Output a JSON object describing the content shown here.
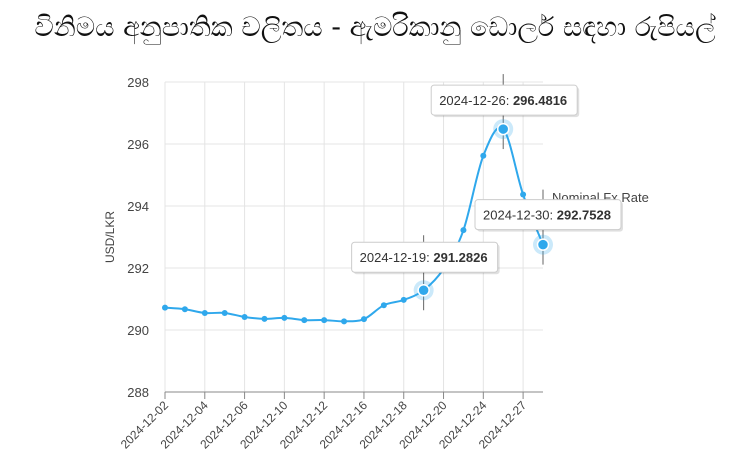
{
  "title": "විනිමය අනුපාතික චලිතය - ඇමරිකානු ඩොලර් සඳහා රුපියල්",
  "colors": {
    "line": "#2fa8ec",
    "grid": "#e4e4e4",
    "axis": "#888888"
  },
  "chart_data": {
    "type": "line",
    "ylabel": "USD/LKR",
    "xlabel": "",
    "ylim": [
      288,
      298
    ],
    "yticks": [
      288,
      290,
      292,
      294,
      296,
      298
    ],
    "grid": true,
    "legend_position": "right",
    "series": [
      {
        "name": "Nominal Fx Rate",
        "x": [
          "2024-12-02",
          "2024-12-03",
          "2024-12-04",
          "2024-12-05",
          "2024-12-06",
          "2024-12-09",
          "2024-12-10",
          "2024-12-11",
          "2024-12-12",
          "2024-12-13",
          "2024-12-16",
          "2024-12-17",
          "2024-12-18",
          "2024-12-19",
          "2024-12-20",
          "2024-12-23",
          "2024-12-24",
          "2024-12-26",
          "2024-12-27",
          "2024-12-30"
        ],
        "values": [
          290.72,
          290.67,
          290.55,
          290.55,
          290.42,
          290.36,
          290.39,
          290.32,
          290.32,
          290.28,
          290.35,
          290.8,
          290.97,
          291.2826,
          291.97,
          293.22,
          295.62,
          296.4816,
          294.37,
          292.7528
        ]
      }
    ],
    "x_tick_labels": [
      "2024-12-02",
      "2024-12-04",
      "2024-12-06",
      "2024-12-10",
      "2024-12-12",
      "2024-12-16",
      "2024-12-18",
      "2024-12-20",
      "2024-12-24",
      "2024-12-27"
    ],
    "tooltips": [
      {
        "date": "2024-12-26",
        "value": "296.4816"
      },
      {
        "date": "2024-12-19",
        "value": "291.2826"
      },
      {
        "date": "2024-12-30",
        "value": "292.7528"
      }
    ]
  }
}
